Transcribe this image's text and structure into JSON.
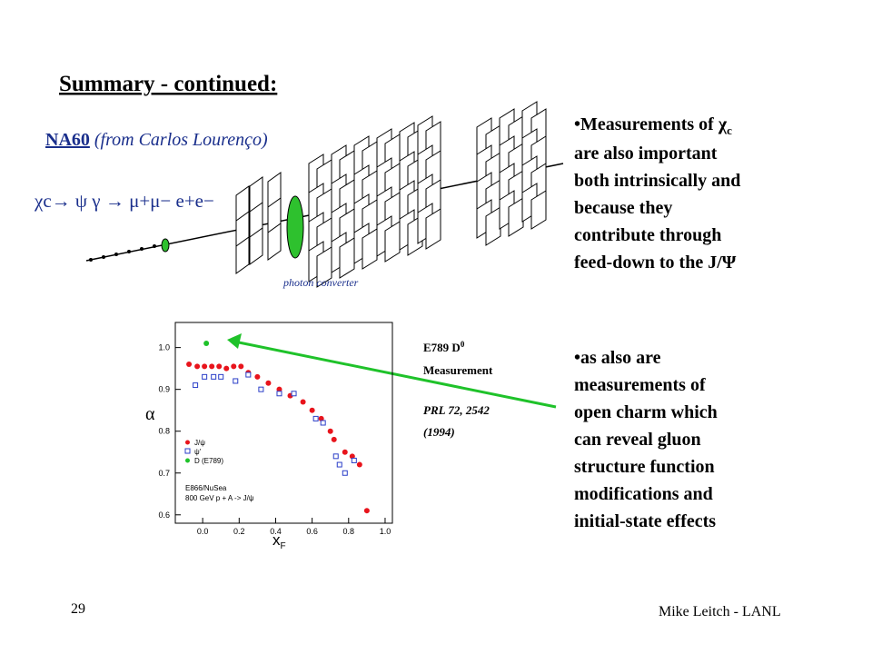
{
  "slide": {
    "title": "Summary - continued:",
    "source_name": "NA60",
    "source_note": " (from Carlos Lourenço)",
    "decay": "χc→ ψ γ → μ+μ− e+e−",
    "converter_label": "photon converter",
    "bullet1": {
      "lead": "•Measurements of χ",
      "sub": "c",
      "lines": [
        "are also important",
        "both intrinsically and",
        "because they",
        "contribute through",
        "feed-down to the J/Ψ"
      ]
    },
    "bullet2": {
      "lines": [
        "•as also are",
        "measurements of",
        "open charm which",
        "can reveal gluon",
        "structure function",
        "modifications and",
        "initial-state effects"
      ]
    },
    "note_line1": "E789 D",
    "note_sup": "0",
    "note_line2": "Measurement",
    "ref_line1": "PRL 72, 2542",
    "ref_line2": "(1994)",
    "page_number": "29",
    "footer": "Mike Leitch - LANL"
  },
  "chart_data": {
    "type": "scatter",
    "x_label": "x",
    "x_label_sub": "F",
    "y_label": "α",
    "experiment": "E866/NuSea",
    "reaction": "800 GeV p + A -> J/ψ",
    "xlim": [
      -0.15,
      1.04
    ],
    "ylim": [
      0.58,
      1.06
    ],
    "xticks": [
      {
        "value": 0,
        "label": "0.0"
      },
      {
        "value": 0.2,
        "label": "0.2"
      },
      {
        "value": 0.4,
        "label": "0.4"
      },
      {
        "value": 0.6,
        "label": "0.6"
      },
      {
        "value": 0.8,
        "label": "0.8"
      },
      {
        "value": 1,
        "label": "1.0"
      }
    ],
    "yticks": [
      {
        "value": 0.6,
        "label": "0.6"
      },
      {
        "value": 0.7,
        "label": "0.7"
      },
      {
        "value": 0.8,
        "label": "0.8"
      },
      {
        "value": 0.9,
        "label": "0.9"
      },
      {
        "value": 1,
        "label": "1.0"
      }
    ],
    "series": [
      {
        "name": "J/ψ",
        "color": "#e8141c",
        "x": [
          -0.075,
          -0.03,
          0.01,
          0.05,
          0.09,
          0.13,
          0.17,
          0.21,
          0.25,
          0.3,
          0.36,
          0.42,
          0.48,
          0.55,
          0.6,
          0.65,
          0.7,
          0.72,
          0.78,
          0.82,
          0.86,
          0.9
        ],
        "values": [
          0.96,
          0.955,
          0.955,
          0.955,
          0.955,
          0.95,
          0.955,
          0.955,
          0.94,
          0.93,
          0.915,
          0.9,
          0.885,
          0.87,
          0.85,
          0.83,
          0.8,
          0.78,
          0.75,
          0.74,
          0.72,
          0.61
        ]
      },
      {
        "name": "ψ'",
        "color": "#2a3ec8",
        "x": [
          -0.04,
          0.01,
          0.06,
          0.1,
          0.18,
          0.25,
          0.32,
          0.42,
          0.5,
          0.62,
          0.66,
          0.73,
          0.75,
          0.78,
          0.83
        ],
        "values": [
          0.91,
          0.93,
          0.93,
          0.93,
          0.92,
          0.935,
          0.9,
          0.89,
          0.89,
          0.83,
          0.82,
          0.74,
          0.72,
          0.7,
          0.73
        ]
      },
      {
        "name": "D (E789)",
        "color": "#1fc22a",
        "x": [
          0.02
        ],
        "values": [
          1.01
        ]
      }
    ]
  }
}
